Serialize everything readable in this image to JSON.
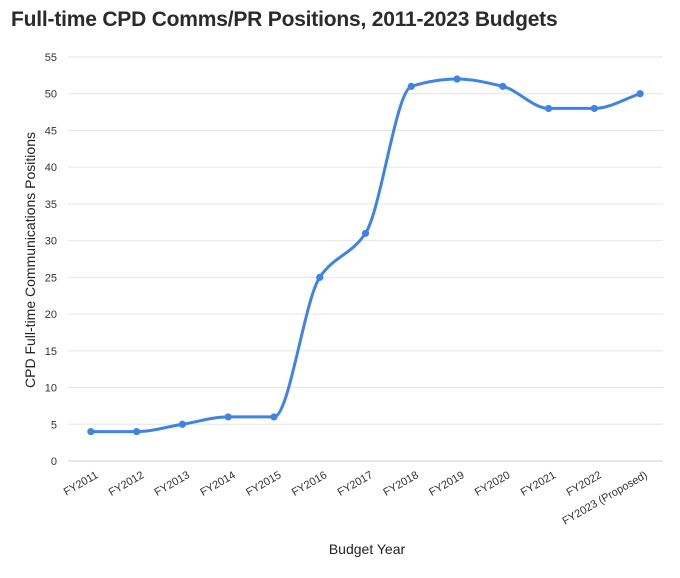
{
  "chart_data": {
    "type": "line",
    "title": "Full-time CPD Comms/PR Positions, 2011-2023 Budgets",
    "xlabel": "Budget Year",
    "ylabel": "CPD Full-time Communications Positions",
    "categories": [
      "FY2011",
      "FY2012",
      "FY2013",
      "FY2014",
      "FY2015",
      "FY2016",
      "FY2017",
      "FY2018",
      "FY2019",
      "FY2020",
      "FY2021",
      "FY2022",
      "FY2023 (Proposed)"
    ],
    "series": [
      {
        "values": [
          4,
          4,
          5,
          6,
          6,
          25,
          31,
          51,
          52,
          51,
          48,
          48,
          50
        ]
      }
    ],
    "ylim": [
      0,
      55
    ],
    "yticks": [
      0,
      5,
      10,
      15,
      20,
      25,
      30,
      35,
      40,
      45,
      50,
      55
    ],
    "grid": true,
    "line_color": "#3f84e5",
    "grid_color": "#e6e6e6"
  }
}
